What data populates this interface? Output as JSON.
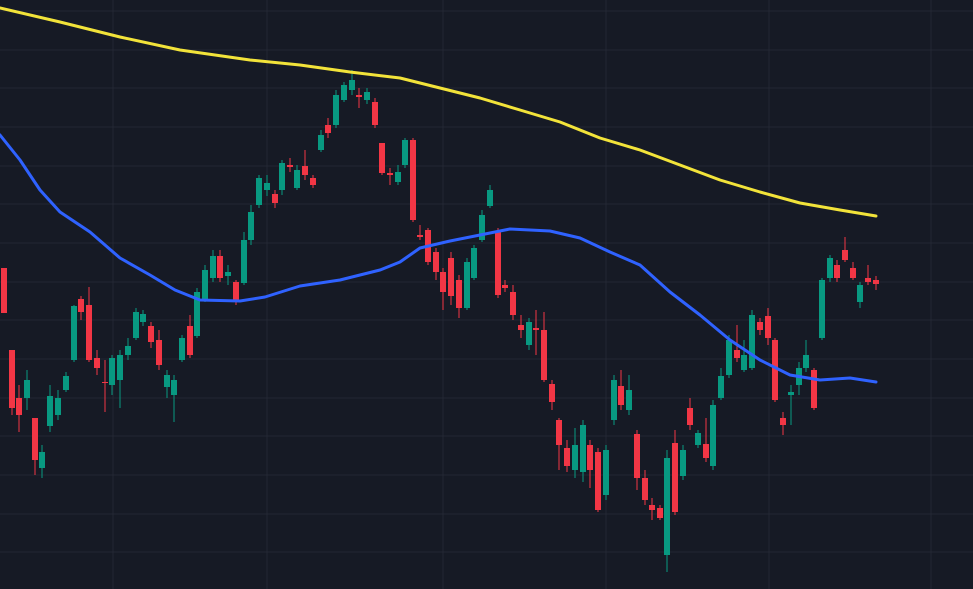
{
  "chart_data": {
    "type": "candlestick",
    "background": "#161a25",
    "grid": true,
    "grid_color": "#232733",
    "up_color": "#089981",
    "down_color": "#f23645",
    "xlim": [
      0,
      973
    ],
    "ylim": [
      11,
      600
    ],
    "xticks": [
      113,
      267,
      443,
      606,
      769,
      931
    ],
    "yticks": [
      589,
      550,
      512,
      473,
      434,
      396,
      357,
      318,
      280,
      241,
      202,
      164,
      125,
      86,
      48
    ],
    "x": [
      4,
      12,
      19,
      27,
      35,
      42,
      50,
      58,
      66,
      74,
      81,
      89,
      97,
      105,
      112,
      120,
      128,
      136,
      143,
      151,
      159,
      167,
      174,
      182,
      190,
      197,
      205,
      213,
      220,
      228,
      236,
      244,
      251,
      259,
      267,
      275,
      282,
      290,
      297,
      305,
      313,
      321,
      328,
      336,
      344,
      352,
      359,
      367,
      375,
      382,
      390,
      398,
      405,
      413,
      420,
      428,
      436,
      443,
      451,
      459,
      467,
      474,
      482,
      490,
      498,
      505,
      513,
      521,
      529,
      536,
      544,
      552,
      559,
      567,
      575,
      583,
      590,
      598,
      606,
      614,
      621,
      629,
      637,
      645,
      652,
      660,
      667,
      675,
      683,
      690,
      698,
      706,
      713,
      721,
      729,
      737,
      744,
      752,
      760,
      768,
      775,
      783,
      791,
      799,
      806,
      814,
      822,
      830,
      837,
      845,
      853,
      860,
      868,
      876
    ],
    "open": [
      332,
      250,
      202,
      202,
      182,
      132,
      174,
      185,
      210,
      240,
      301,
      295,
      242,
      218,
      215,
      220,
      245,
      262,
      278,
      274,
      260,
      213,
      205,
      240,
      274,
      264,
      300,
      322,
      344,
      324,
      318,
      317,
      360,
      395,
      410,
      406,
      410,
      435,
      412,
      434,
      422,
      450,
      475,
      475,
      500,
      510,
      505,
      500,
      498,
      457,
      427,
      418,
      435,
      460,
      365,
      370,
      348,
      328,
      342,
      320,
      292,
      322,
      360,
      394,
      368,
      315,
      308,
      275,
      255,
      272,
      270,
      216,
      180,
      152,
      130,
      128,
      155,
      148,
      105,
      180,
      214,
      190,
      166,
      122,
      95,
      92,
      45,
      157,
      124,
      192,
      155,
      156,
      134,
      202,
      225,
      250,
      230,
      232,
      278,
      284,
      260,
      182,
      205,
      215,
      232,
      230,
      262,
      322,
      335,
      350,
      332,
      298,
      322,
      320
    ],
    "high": [
      332,
      250,
      215,
      230,
      182,
      155,
      215,
      210,
      228,
      295,
      304,
      313,
      250,
      240,
      245,
      250,
      262,
      292,
      290,
      278,
      270,
      230,
      225,
      265,
      285,
      312,
      335,
      350,
      350,
      335,
      320,
      368,
      395,
      425,
      425,
      410,
      440,
      442,
      435,
      450,
      425,
      470,
      482,
      510,
      518,
      530,
      512,
      512,
      502,
      457,
      432,
      435,
      462,
      462,
      375,
      372,
      352,
      332,
      348,
      325,
      342,
      355,
      390,
      415,
      372,
      320,
      315,
      285,
      282,
      290,
      288,
      220,
      182,
      160,
      172,
      180,
      160,
      152,
      155,
      225,
      230,
      225,
      170,
      130,
      102,
      95,
      150,
      170,
      155,
      202,
      170,
      182,
      200,
      232,
      265,
      275,
      260,
      290,
      282,
      292,
      262,
      188,
      215,
      238,
      260,
      232,
      322,
      345,
      340,
      363,
      338,
      318,
      335,
      324
    ],
    "low": [
      287,
      185,
      168,
      190,
      125,
      122,
      168,
      180,
      208,
      238,
      280,
      238,
      225,
      188,
      205,
      192,
      240,
      260,
      274,
      252,
      230,
      202,
      178,
      238,
      242,
      262,
      298,
      318,
      318,
      315,
      295,
      315,
      355,
      392,
      404,
      392,
      405,
      428,
      410,
      420,
      412,
      448,
      462,
      472,
      498,
      505,
      492,
      496,
      472,
      425,
      415,
      415,
      432,
      378,
      360,
      335,
      320,
      290,
      295,
      282,
      290,
      320,
      358,
      392,
      302,
      308,
      280,
      262,
      250,
      245,
      218,
      190,
      130,
      128,
      122,
      118,
      112,
      88,
      100,
      175,
      190,
      185,
      110,
      95,
      80,
      80,
      28,
      85,
      120,
      170,
      152,
      138,
      130,
      200,
      222,
      238,
      228,
      230,
      265,
      255,
      198,
      165,
      175,
      205,
      228,
      190,
      260,
      318,
      318,
      338,
      320,
      292,
      315,
      310
    ],
    "close": [
      287,
      192,
      185,
      220,
      140,
      148,
      204,
      202,
      224,
      294,
      288,
      240,
      232,
      217,
      242,
      245,
      254,
      288,
      286,
      258,
      235,
      225,
      220,
      262,
      245,
      308,
      330,
      344,
      322,
      328,
      300,
      360,
      388,
      422,
      417,
      397,
      437,
      433,
      430,
      425,
      415,
      465,
      467,
      505,
      515,
      520,
      503,
      508,
      475,
      427,
      425,
      428,
      460,
      380,
      363,
      338,
      328,
      308,
      304,
      292,
      338,
      352,
      385,
      410,
      305,
      312,
      285,
      270,
      278,
      270,
      220,
      198,
      155,
      134,
      155,
      175,
      130,
      90,
      150,
      220,
      195,
      210,
      122,
      100,
      90,
      82,
      142,
      88,
      150,
      175,
      167,
      142,
      195,
      224,
      260,
      242,
      245,
      285,
      270,
      262,
      200,
      175,
      208,
      232,
      245,
      192,
      320,
      342,
      322,
      340,
      322,
      315,
      318,
      316
    ],
    "lines": [
      {
        "color": "#f2e33a",
        "x": [
          0,
          60,
          120,
          180,
          250,
          300,
          350,
          400,
          440,
          480,
          520,
          560,
          600,
          640,
          680,
          720,
          760,
          800,
          840,
          876
        ],
        "values": [
          592,
          578,
          563,
          550,
          540,
          535,
          528,
          522,
          512,
          502,
          490,
          478,
          462,
          450,
          435,
          420,
          408,
          397,
          390,
          384
        ]
      },
      {
        "color": "#2f62ff",
        "x": [
          0,
          20,
          40,
          60,
          90,
          120,
          150,
          175,
          200,
          240,
          265,
          300,
          340,
          380,
          400,
          420,
          450,
          480,
          510,
          550,
          580,
          610,
          640,
          670,
          700,
          730,
          760,
          790,
          820,
          850,
          876
        ],
        "values": [
          465,
          440,
          410,
          388,
          368,
          342,
          325,
          310,
          300,
          299,
          303,
          314,
          320,
          330,
          338,
          352,
          359,
          365,
          371,
          369,
          362,
          348,
          335,
          308,
          285,
          260,
          240,
          225,
          220,
          222,
          218
        ]
      }
    ]
  }
}
